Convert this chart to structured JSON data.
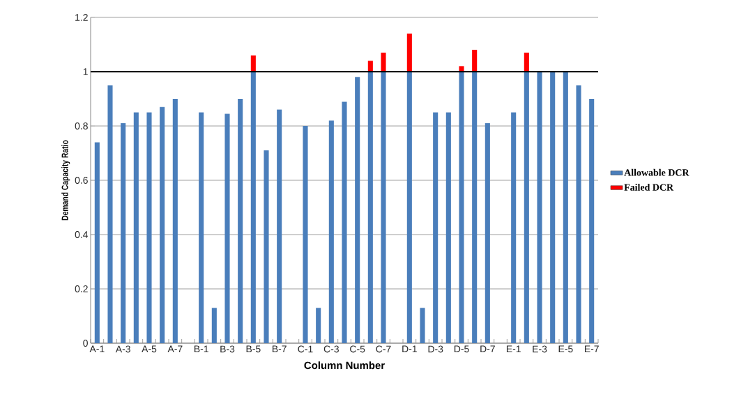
{
  "chart_data": {
    "type": "bar",
    "stacked": true,
    "xlabel": "Column Number",
    "ylabel": "Demand Capacity Ratio",
    "categories": [
      "A-1",
      null,
      "A-3",
      null,
      "A-5",
      null,
      "A-7",
      null,
      "B-1",
      null,
      "B-3",
      null,
      "B-5",
      null,
      "B-7",
      null,
      "C-1",
      null,
      "C-3",
      null,
      "C-5",
      null,
      "C-7",
      null,
      "D-1",
      null,
      "D-3",
      null,
      "D-5",
      null,
      "D-7",
      null,
      "E-1",
      null,
      "E-3",
      null,
      "E-5",
      null,
      "E-7"
    ],
    "series": [
      {
        "name": "Allowable DCR",
        "color": "#4a7ebb",
        "values": [
          0.74,
          0.95,
          0.81,
          0.85,
          0.85,
          0.87,
          0.9,
          null,
          0.85,
          0.13,
          0.845,
          0.9,
          1.0,
          0.71,
          0.86,
          null,
          0.8,
          0.13,
          0.82,
          0.89,
          0.98,
          1.0,
          1.0,
          null,
          1.0,
          0.13,
          0.85,
          0.85,
          1.0,
          1.0,
          0.81,
          null,
          0.85,
          1.0,
          1.0,
          1.0,
          1.0,
          0.95,
          0.9
        ]
      },
      {
        "name": "Failed DCR",
        "color": "#ff0000",
        "values": [
          null,
          null,
          null,
          null,
          null,
          null,
          null,
          null,
          null,
          null,
          null,
          null,
          0.06,
          null,
          null,
          null,
          null,
          null,
          null,
          null,
          null,
          0.04,
          0.07,
          null,
          0.14,
          null,
          null,
          null,
          0.02,
          0.08,
          null,
          null,
          null,
          0.07,
          null,
          null,
          null,
          null,
          null
        ]
      }
    ],
    "ylim": [
      0,
      1.2
    ],
    "yticks": [
      0,
      0.2,
      0.4,
      0.6,
      0.8,
      1,
      1.2
    ],
    "grid": "y",
    "legend": "right",
    "ref_lines": [
      {
        "axis": "y",
        "value": 1,
        "color": "#000000"
      }
    ]
  }
}
